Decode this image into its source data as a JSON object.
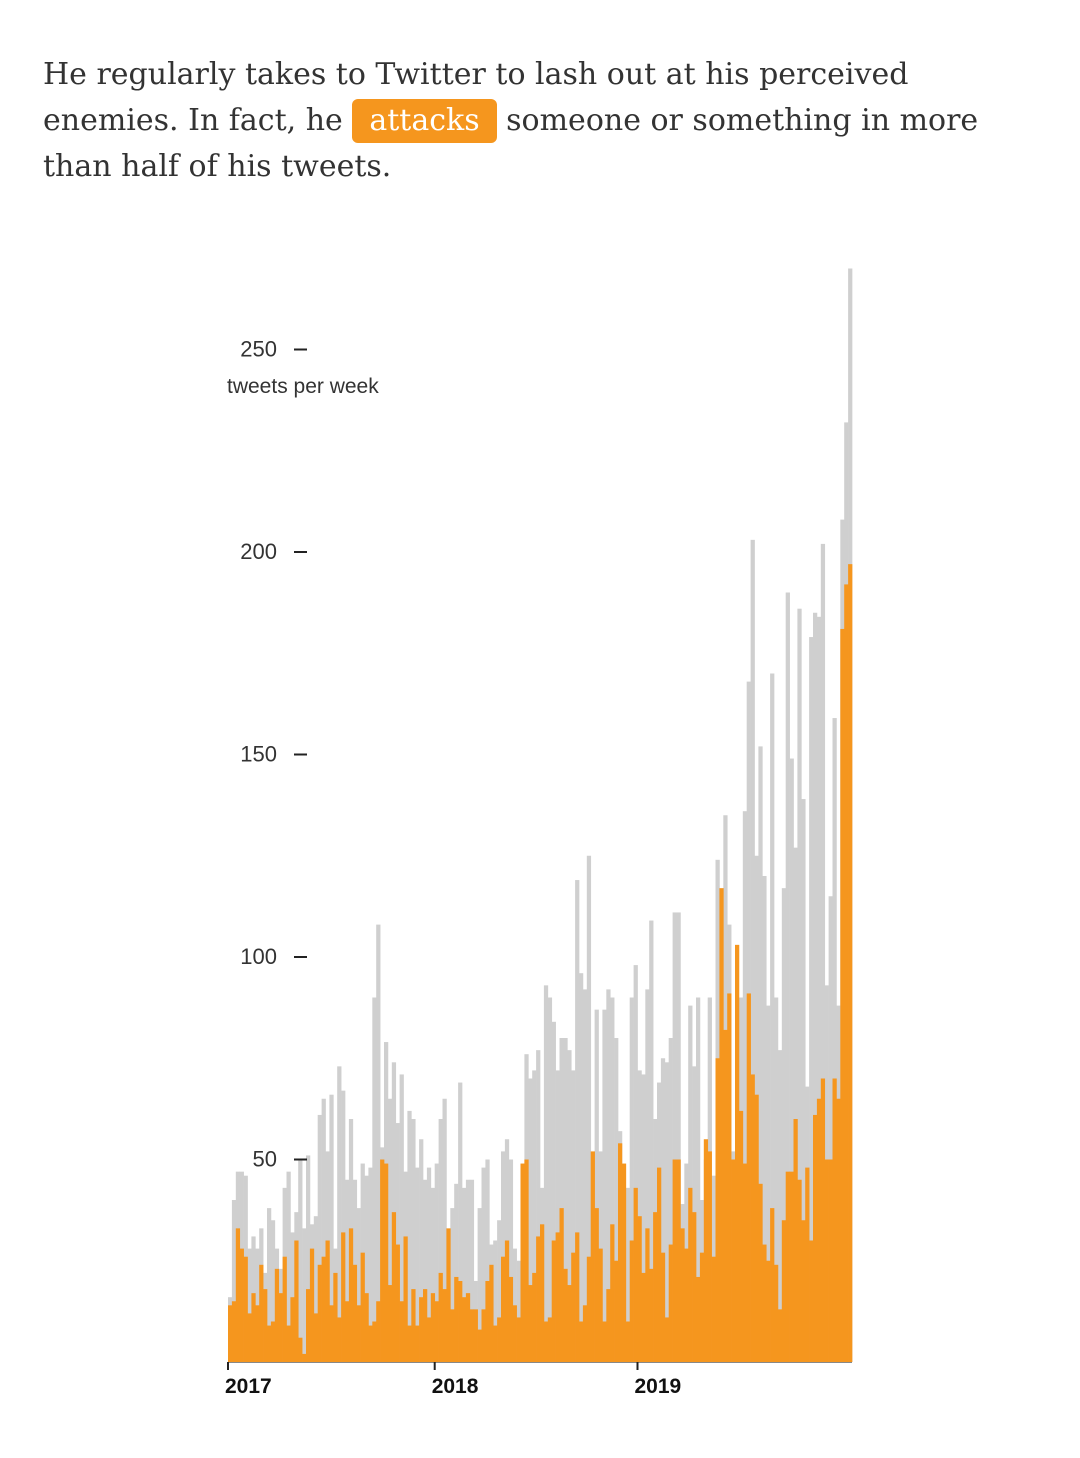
{
  "intro": {
    "before": "He regularly takes to Twitter to lash out at his perceived enemies. In fact, he",
    "highlight": "attacks",
    "after": "someone or something in more than half of his tweets."
  },
  "colors": {
    "total": "#cfcfcf",
    "attacks": "#f5961e",
    "highlight_bg": "#f5961e",
    "text": "#333333"
  },
  "chart_data": {
    "type": "bar",
    "stacked": "overlay",
    "ylabel": "tweets per week",
    "ylim": [
      0,
      270
    ],
    "yticks": [
      50,
      100,
      150,
      200,
      250
    ],
    "xticks": [
      "2017",
      "2018",
      "2019"
    ],
    "year_start_week": [
      0,
      53,
      105
    ],
    "grid": false,
    "series": [
      {
        "key": "total",
        "values": [
          16,
          40,
          47,
          47,
          46,
          28,
          31,
          28,
          33,
          22,
          38,
          35,
          28,
          23,
          43,
          47,
          32,
          37,
          50,
          33,
          51,
          34,
          36,
          61,
          65,
          52,
          66,
          28,
          73,
          67,
          45,
          60,
          45,
          38,
          49,
          46,
          48,
          90,
          108,
          53,
          79,
          65,
          74,
          59,
          71,
          47,
          62,
          60,
          48,
          55,
          45,
          48,
          43,
          49,
          60,
          65,
          20,
          38,
          44,
          69,
          43,
          45,
          45,
          20,
          38,
          48,
          50,
          29,
          30,
          35,
          52,
          55,
          50,
          28,
          25,
          43,
          76,
          70,
          72,
          77,
          43,
          93,
          90,
          84,
          72,
          80,
          80,
          77,
          72,
          119,
          96,
          92,
          125,
          47,
          87,
          52,
          87,
          92,
          90,
          80,
          57,
          39,
          43,
          90,
          98,
          72,
          71,
          92,
          109,
          60,
          69,
          75,
          74,
          80,
          111,
          111,
          39,
          49,
          88,
          73,
          90,
          40,
          50,
          90,
          46,
          124,
          77,
          135,
          108,
          52,
          75,
          90,
          136,
          168,
          203,
          125,
          152,
          120,
          88,
          170,
          90,
          77,
          117,
          190,
          149,
          127,
          186,
          139,
          68,
          179,
          185,
          184,
          202,
          93,
          115,
          159,
          88,
          208,
          232,
          270
        ],
        "values_note": "weekly total tweets"
      },
      {
        "key": "attacks",
        "values": [
          14,
          15,
          33,
          28,
          26,
          12,
          17,
          14,
          24,
          18,
          9,
          10,
          23,
          17,
          26,
          9,
          16,
          30,
          6,
          2,
          18,
          28,
          12,
          24,
          26,
          30,
          14,
          22,
          11,
          32,
          15,
          33,
          24,
          14,
          27,
          17,
          9,
          10,
          15,
          50,
          49,
          19,
          37,
          29,
          15,
          31,
          9,
          18,
          9,
          16,
          18,
          11,
          17,
          15,
          22,
          18,
          33,
          13,
          21,
          20,
          16,
          17,
          13,
          13,
          8,
          13,
          20,
          24,
          9,
          11,
          26,
          30,
          21,
          14,
          11,
          49,
          50,
          19,
          22,
          31,
          34,
          10,
          11,
          30,
          32,
          38,
          23,
          19,
          27,
          32,
          10,
          14,
          26,
          52,
          38,
          28,
          10,
          18,
          34,
          25,
          54,
          49,
          10,
          30,
          43,
          36,
          22,
          33,
          23,
          37,
          48,
          27,
          11,
          29,
          50,
          50,
          33,
          28,
          43,
          37,
          21,
          27,
          55,
          52,
          26,
          75,
          117,
          82,
          91,
          50,
          103,
          62,
          49,
          91,
          71,
          66,
          44,
          29,
          25,
          38,
          24,
          13,
          35,
          47,
          47,
          60,
          45,
          35,
          48,
          30,
          61,
          65,
          70,
          50,
          50,
          70,
          65,
          181,
          192,
          197
        ]
      }
    ]
  }
}
